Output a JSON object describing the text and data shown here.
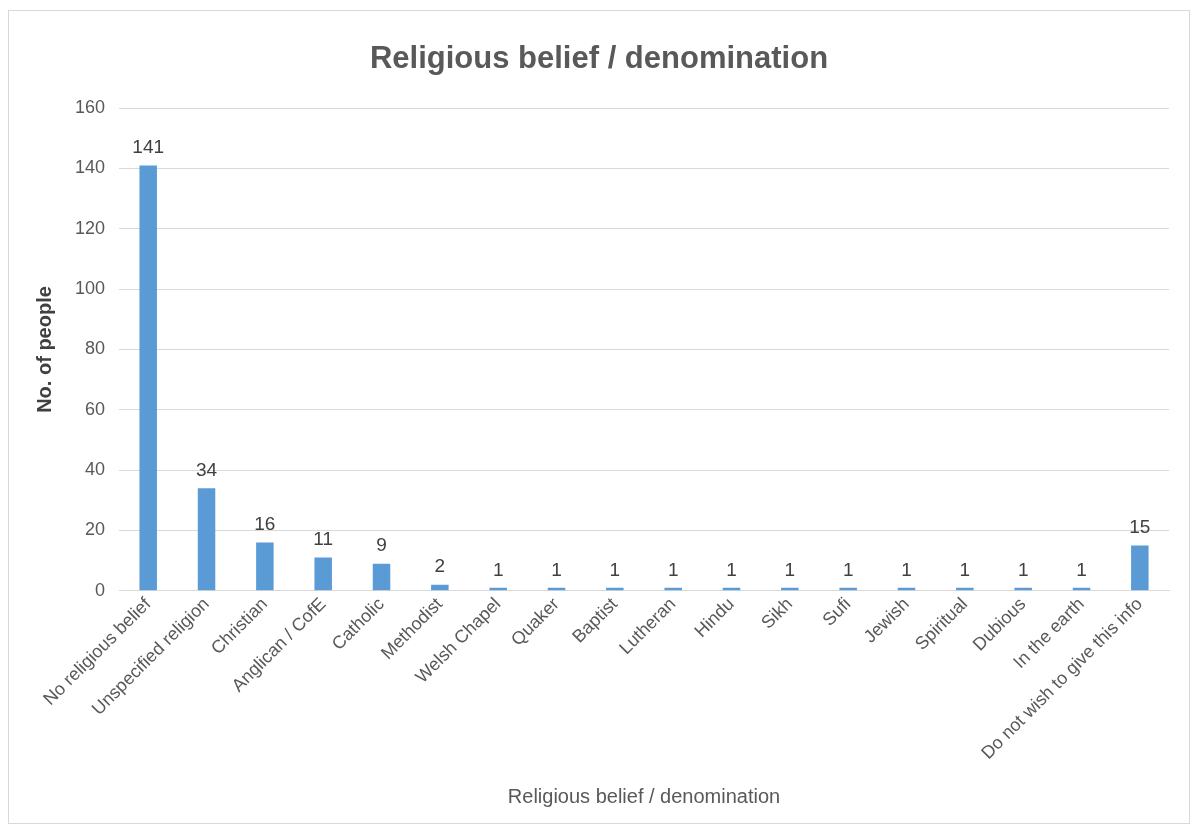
{
  "chart_data": {
    "type": "bar",
    "title": "Religious belief / denomination",
    "xlabel": "Religious belief / denomination",
    "ylabel": "No. of people",
    "categories": [
      "No religious belief",
      "Unspecified religion",
      "Christian",
      "Anglican / CofE",
      "Catholic",
      "Methodist",
      "Welsh Chapel",
      "Quaker",
      "Baptist",
      "Lutheran",
      "Hindu",
      "Sikh",
      "Sufi",
      "Jewish",
      "Spiritual",
      "Dubious",
      "In the earth",
      "Do not wish to give this info"
    ],
    "values": [
      141,
      34,
      16,
      11,
      9,
      2,
      1,
      1,
      1,
      1,
      1,
      1,
      1,
      1,
      1,
      1,
      1,
      15
    ],
    "color": "#5b9bd5",
    "ylim": [
      0,
      160
    ],
    "yticks": [
      0,
      20,
      40,
      60,
      80,
      100,
      120,
      140,
      160
    ],
    "grid": "y",
    "legend": false,
    "data_labels": true
  }
}
